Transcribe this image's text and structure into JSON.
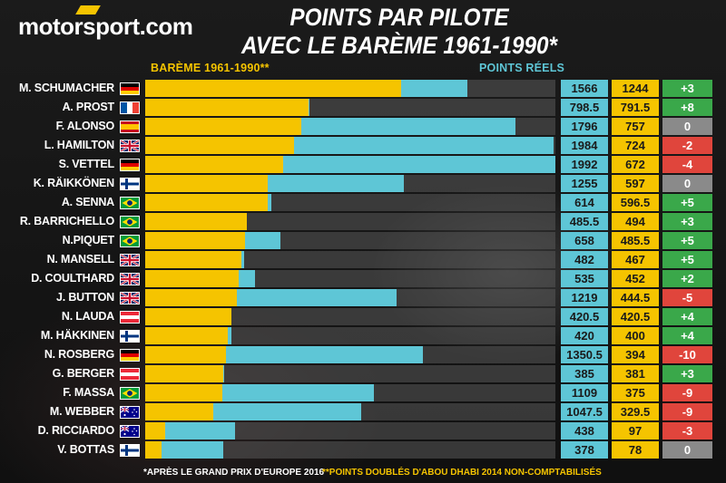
{
  "brand": {
    "logo_text": "motorsport.com"
  },
  "title_line1": "POINTS PAR PILOTE",
  "title_line2": "AVEC LE BARÈME 1961-1990*",
  "legend_bareme": "BARÈME 1961-1990**",
  "legend_real": "POINTS RÉELS",
  "footnote1": "*APRÈS LE GRAND PRIX D'EUROPE 2016",
  "footnote2": "**POINTS DOUBLÉS D'ABOU DHABI 2014 NON-COMPTABILISÉS",
  "colors": {
    "bareme": "#f5c400",
    "real": "#5ec6d6",
    "positive": "#3aa84a",
    "negative": "#e0453c",
    "neutral": "#8a8a8a"
  },
  "chart_data": {
    "type": "bar",
    "orientation": "horizontal",
    "xlim": [
      0,
      1992
    ],
    "categories": [
      "M. SCHUMACHER",
      "A. PROST",
      "F. ALONSO",
      "L. HAMILTON",
      "S. VETTEL",
      "K. RÄIKKÖNEN",
      "A. SENNA",
      "R. BARRICHELLO",
      "N.PIQUET",
      "N. MANSELL",
      "D. COULTHARD",
      "J. BUTTON",
      "N. LAUDA",
      "M. HÄKKINEN",
      "N. ROSBERG",
      "G. BERGER",
      "F. MASSA",
      "M. WEBBER",
      "D. RICCIARDO",
      "V. BOTTAS"
    ],
    "series": [
      {
        "name": "POINTS RÉELS",
        "values": [
          1566,
          798.5,
          1796,
          1984,
          1992,
          1255,
          614,
          485.5,
          658,
          482,
          535,
          1219,
          420.5,
          420,
          1350.5,
          385,
          1109,
          1047.5,
          438,
          378
        ]
      },
      {
        "name": "BARÈME 1961-1990**",
        "values": [
          1244,
          791.5,
          757,
          724,
          672,
          597,
          596.5,
          494,
          485.5,
          467,
          452,
          444.5,
          420.5,
          400,
          394,
          381,
          375,
          329.5,
          97,
          78
        ]
      }
    ],
    "real_labels": [
      "1566",
      "798.5",
      "1796",
      "1984",
      "1992",
      "1255",
      "614",
      "485.5",
      "658",
      "482",
      "535",
      "1219",
      "420.5",
      "420",
      "1350.5",
      "385",
      "1109",
      "1047.5",
      "438",
      "378"
    ],
    "bareme_labels": [
      "1244",
      "791.5",
      "757",
      "724",
      "672",
      "597",
      "596.5",
      "494",
      "485.5",
      "467",
      "452",
      "444.5",
      "420.5",
      "400",
      "394",
      "381",
      "375",
      "329.5",
      "97",
      "78"
    ],
    "differences": [
      "+3",
      "+8",
      "0",
      "-2",
      "-4",
      "0",
      "+5",
      "+3",
      "+5",
      "+5",
      "+2",
      "-5",
      "+4",
      "+4",
      "-10",
      "+3",
      "-9",
      "-9",
      "-3",
      "0"
    ],
    "flags": [
      "de",
      "fr",
      "es",
      "gb",
      "de",
      "fi",
      "br",
      "br",
      "br",
      "gb",
      "gb",
      "gb",
      "at",
      "fi",
      "de",
      "at",
      "br",
      "au",
      "au",
      "fi"
    ]
  }
}
